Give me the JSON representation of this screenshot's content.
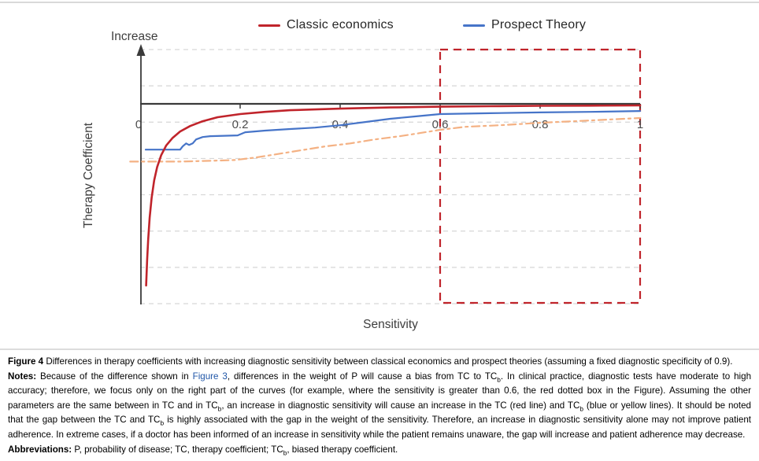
{
  "colors": {
    "axis": "#3a3a3a",
    "gridline": "#d6d6d6",
    "tick_label": "#4d4d4d",
    "axis_title": "#3d3d3d",
    "caption_link": "#2157a8"
  },
  "figure": {
    "legend": [
      {
        "label": "Classic economics",
        "color": "#c0242b"
      },
      {
        "label": "Prospect Theory",
        "color": "#4674c8"
      }
    ]
  },
  "chart_data": {
    "type": "line",
    "title": "",
    "xlabel": "Sensitivity",
    "ylabel": "Therapy Coefficient",
    "y_axis_annotation": "Increase",
    "xlim": [
      0,
      1
    ],
    "x_ticks": [
      0,
      0.2,
      0.4,
      0.6,
      0.8,
      1
    ],
    "x_tick_labels": [
      "0",
      "0.2",
      "0.4",
      "0.6",
      "0.8",
      "1"
    ],
    "ylim_note": "y axis is qualitative (no numeric labels); series values are normalized therapy-coefficient units where 1.0 = the horizontal asymptote (axis crossing line) and 0 = bottom gridline",
    "grid": "horizontal dashed gridlines, 8 lines",
    "legend_position": "top",
    "series": [
      {
        "name": "Classic economics",
        "color": "#c0242b",
        "line_style": "solid",
        "points": [
          [
            0.012,
            0.091
          ],
          [
            0.014,
            0.221
          ],
          [
            0.016,
            0.32
          ],
          [
            0.019,
            0.431
          ],
          [
            0.023,
            0.53
          ],
          [
            0.028,
            0.617
          ],
          [
            0.034,
            0.684
          ],
          [
            0.042,
            0.743
          ],
          [
            0.052,
            0.791
          ],
          [
            0.065,
            0.83
          ],
          [
            0.08,
            0.862
          ],
          [
            0.1,
            0.889
          ],
          [
            0.125,
            0.913
          ],
          [
            0.155,
            0.933
          ],
          [
            0.2,
            0.949
          ],
          [
            0.25,
            0.96
          ],
          [
            0.3,
            0.968
          ],
          [
            0.4,
            0.976
          ],
          [
            0.5,
            0.982
          ],
          [
            0.6,
            0.986
          ],
          [
            0.7,
            0.988
          ],
          [
            0.8,
            0.99
          ],
          [
            0.9,
            0.991
          ],
          [
            1.0,
            0.992
          ]
        ]
      },
      {
        "name": "Prospect Theory",
        "color": "#4674c8",
        "line_style": "solid",
        "points": [
          [
            0.011,
            0.771
          ],
          [
            0.08,
            0.771
          ],
          [
            0.085,
            0.787
          ],
          [
            0.092,
            0.802
          ],
          [
            0.098,
            0.794
          ],
          [
            0.105,
            0.802
          ],
          [
            0.112,
            0.822
          ],
          [
            0.125,
            0.834
          ],
          [
            0.14,
            0.838
          ],
          [
            0.195,
            0.842
          ],
          [
            0.21,
            0.858
          ],
          [
            0.25,
            0.866
          ],
          [
            0.3,
            0.874
          ],
          [
            0.35,
            0.881
          ],
          [
            0.4,
            0.893
          ],
          [
            0.45,
            0.909
          ],
          [
            0.5,
            0.925
          ],
          [
            0.55,
            0.937
          ],
          [
            0.6,
            0.949
          ],
          [
            0.7,
            0.953
          ],
          [
            0.8,
            0.957
          ],
          [
            0.9,
            0.96
          ],
          [
            1.0,
            0.964
          ]
        ]
      },
      {
        "name": "TCb yellow line",
        "color": "#f4b183",
        "line_style": "dash-dot",
        "points": [
          [
            -0.02,
            0.711
          ],
          [
            0.08,
            0.711
          ],
          [
            0.14,
            0.715
          ],
          [
            0.19,
            0.719
          ],
          [
            0.23,
            0.731
          ],
          [
            0.27,
            0.747
          ],
          [
            0.32,
            0.767
          ],
          [
            0.37,
            0.787
          ],
          [
            0.42,
            0.802
          ],
          [
            0.47,
            0.822
          ],
          [
            0.52,
            0.838
          ],
          [
            0.56,
            0.854
          ],
          [
            0.6,
            0.87
          ],
          [
            0.65,
            0.885
          ],
          [
            0.72,
            0.893
          ],
          [
            0.8,
            0.905
          ],
          [
            0.9,
            0.917
          ],
          [
            1.0,
            0.929
          ]
        ]
      }
    ],
    "annotation_box": {
      "x0": 0.6,
      "x1": 1.0,
      "color": "#c0242b",
      "style": "dashed",
      "meaning": "red dotted box highlighting sensitivity greater than 0.6"
    }
  },
  "caption": {
    "figure_segments": [
      {
        "t": "Figure 4",
        "b": true
      },
      {
        "t": " Differences in therapy coefficients with increasing diagnostic sensitivity between classical economics and prospect theories (assuming a fixed diagnostic specificity of 0.9)."
      }
    ],
    "notes_segments": [
      {
        "t": "Notes:",
        "b": true
      },
      {
        "t": " Because of the difference shown in "
      },
      {
        "t": "Figure 3",
        "link": true
      },
      {
        "t": ", differences in the weight of P will cause a bias from TC to TC"
      },
      {
        "t": "b",
        "sub": true
      },
      {
        "t": ". In clinical practice, diagnostic tests have moderate to high accuracy; therefore, we focus only on the right part of the curves (for example, where the sensitivity is greater than 0.6, the red dotted box in the Figure). Assuming the other parameters are the same between in TC and in TC"
      },
      {
        "t": "b",
        "sub": true
      },
      {
        "t": ", an increase in diagnostic sensitivity will cause an increase in the TC (red line) and TC"
      },
      {
        "t": "b",
        "sub": true
      },
      {
        "t": " (blue or yellow lines). It should be noted that the gap between the TC and TC"
      },
      {
        "t": "b",
        "sub": true
      },
      {
        "t": " is highly associated with the gap in the weight of the sensitivity. Therefore, an increase in diagnostic sensitivity alone may not improve patient adherence. In extreme cases, if a doctor has been informed of an increase in sensitivity while the patient remains unaware, the gap will increase and patient adherence may decrease."
      }
    ],
    "abbreviations_segments": [
      {
        "t": "Abbreviations:",
        "b": true
      },
      {
        "t": " P, probability of disease; TC, therapy coefficient; TC"
      },
      {
        "t": "b",
        "sub": true
      },
      {
        "t": ", biased therapy coefficient."
      }
    ]
  }
}
